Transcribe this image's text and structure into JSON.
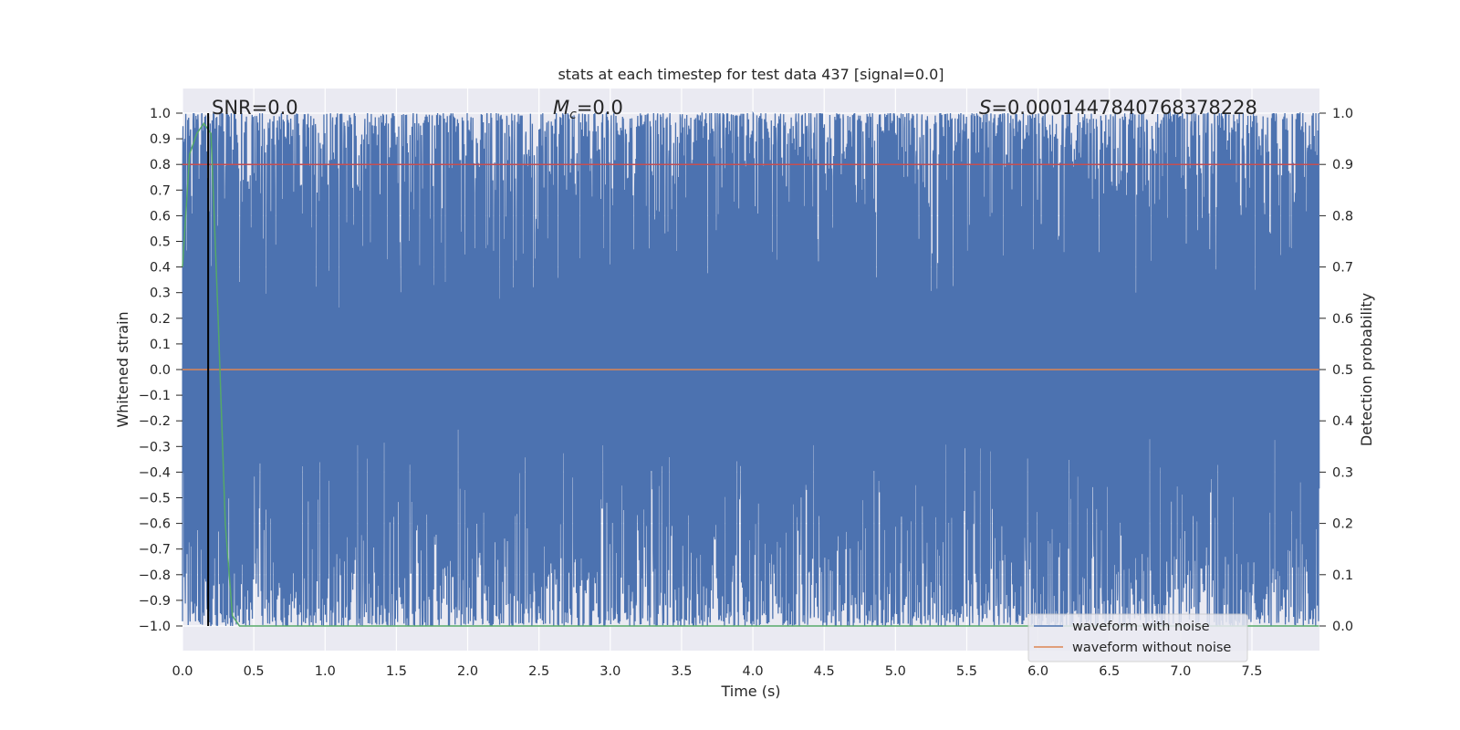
{
  "chart_data": {
    "type": "line",
    "title": "stats at each timestep for test data 437 [signal=0.0]",
    "xlabel": "Time (s)",
    "ylabel": "Whitened strain",
    "y2label": "Detection probability",
    "xlim": [
      0.0,
      8.0
    ],
    "ylim": [
      -1.1,
      1.1
    ],
    "y2lim": [
      -0.05,
      1.05
    ],
    "xticks": [
      "0.0",
      "0.5",
      "1.0",
      "1.5",
      "2.0",
      "2.5",
      "3.0",
      "3.5",
      "4.0",
      "4.5",
      "5.0",
      "5.5",
      "6.0",
      "6.5",
      "7.0",
      "7.5"
    ],
    "yticks": [
      "1.0",
      "0.9",
      "0.8",
      "0.7",
      "0.6",
      "0.5",
      "0.4",
      "0.3",
      "0.2",
      "0.1",
      "0.0",
      "−0.1",
      "−0.2",
      "−0.3",
      "−0.4",
      "−0.5",
      "−0.6",
      "−0.7",
      "−0.8",
      "−0.9",
      "−1.0"
    ],
    "y2ticks": [
      "1.0",
      "0.9",
      "0.8",
      "0.7",
      "0.6",
      "0.5",
      "0.4",
      "0.3",
      "0.2",
      "0.1",
      "0.0"
    ],
    "annotations": {
      "snr": "SNR=0.0",
      "mc_symbol": "M",
      "mc_sub": "c",
      "mc_value": "=0.0",
      "s_symbol": "S",
      "s_value": "=0.0001447840768378228"
    },
    "legend": {
      "position": "lower right",
      "entries": [
        "waveform with noise",
        "waveform without noise"
      ]
    },
    "series": [
      {
        "name": "waveform with noise",
        "axis": "left",
        "color": "#4c72b0",
        "description_range": [
          -1.0,
          1.0
        ],
        "sample_count": 2400
      },
      {
        "name": "waveform without noise",
        "axis": "left",
        "color": "#dd8452",
        "x": [
          0.0,
          8.0
        ],
        "y": [
          0.0,
          0.0
        ]
      },
      {
        "axis": "right",
        "color": "#55a868",
        "x": [
          0.0,
          0.05,
          0.1,
          0.15,
          0.2,
          0.25,
          0.3,
          0.35,
          0.4,
          8.0
        ],
        "y": [
          0.7,
          0.92,
          0.96,
          0.98,
          0.96,
          0.6,
          0.2,
          0.02,
          0.0,
          0.0
        ]
      },
      {
        "axis": "right",
        "color": "#c44e52",
        "x": [
          0.0,
          8.0
        ],
        "y": [
          0.9,
          0.9
        ]
      }
    ],
    "vline": {
      "x": 0.18,
      "color": "#000000"
    },
    "colors": {
      "plot_bg": "#eaeaf2",
      "grid": "#ffffff"
    }
  }
}
